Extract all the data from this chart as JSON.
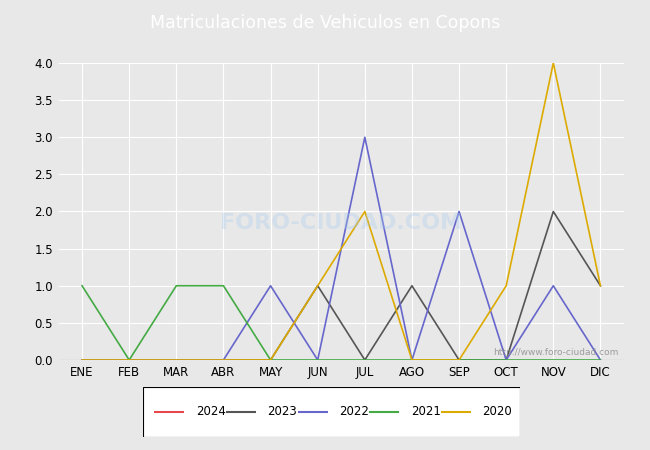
{
  "title": "Matriculaciones de Vehiculos en Copons",
  "months": [
    "ENE",
    "FEB",
    "MAR",
    "ABR",
    "MAY",
    "JUN",
    "JUL",
    "AGO",
    "SEP",
    "OCT",
    "NOV",
    "DIC"
  ],
  "series": {
    "2024": {
      "color": "#e8474c",
      "data": [
        null,
        null,
        null,
        null,
        null,
        null,
        null,
        null,
        null,
        null,
        null,
        null
      ]
    },
    "2023": {
      "color": "#555555",
      "data": [
        0,
        0,
        0,
        0,
        0,
        1,
        0,
        1,
        0,
        0,
        2,
        1
      ]
    },
    "2022": {
      "color": "#6666cc",
      "data": [
        0,
        0,
        0,
        0,
        1,
        0,
        3,
        0,
        2,
        0,
        1,
        0
      ]
    },
    "2021": {
      "color": "#44aa44",
      "data": [
        1,
        0,
        1,
        1,
        0,
        0,
        0,
        0,
        0,
        0,
        0,
        0
      ]
    },
    "2020": {
      "color": "#ddaa00",
      "data": [
        0,
        0,
        0,
        0,
        0,
        1,
        2,
        0,
        0,
        1,
        4,
        1
      ]
    }
  },
  "ylim": [
    0,
    4.0
  ],
  "yticks": [
    0.0,
    0.5,
    1.0,
    1.5,
    2.0,
    2.5,
    3.0,
    3.5,
    4.0
  ],
  "plot_bg_color": "#e8e8e8",
  "fig_bg_color": "#e8e8e8",
  "title_bar_color": "#4f6fbd",
  "title_text_color": "#ffffff",
  "grid_color": "#ffffff",
  "watermark_text": "http://www.foro-ciudad.com",
  "foro_watermark": "FORO-CIUDAD.COM",
  "legend_order": [
    "2024",
    "2023",
    "2022",
    "2021",
    "2020"
  ]
}
